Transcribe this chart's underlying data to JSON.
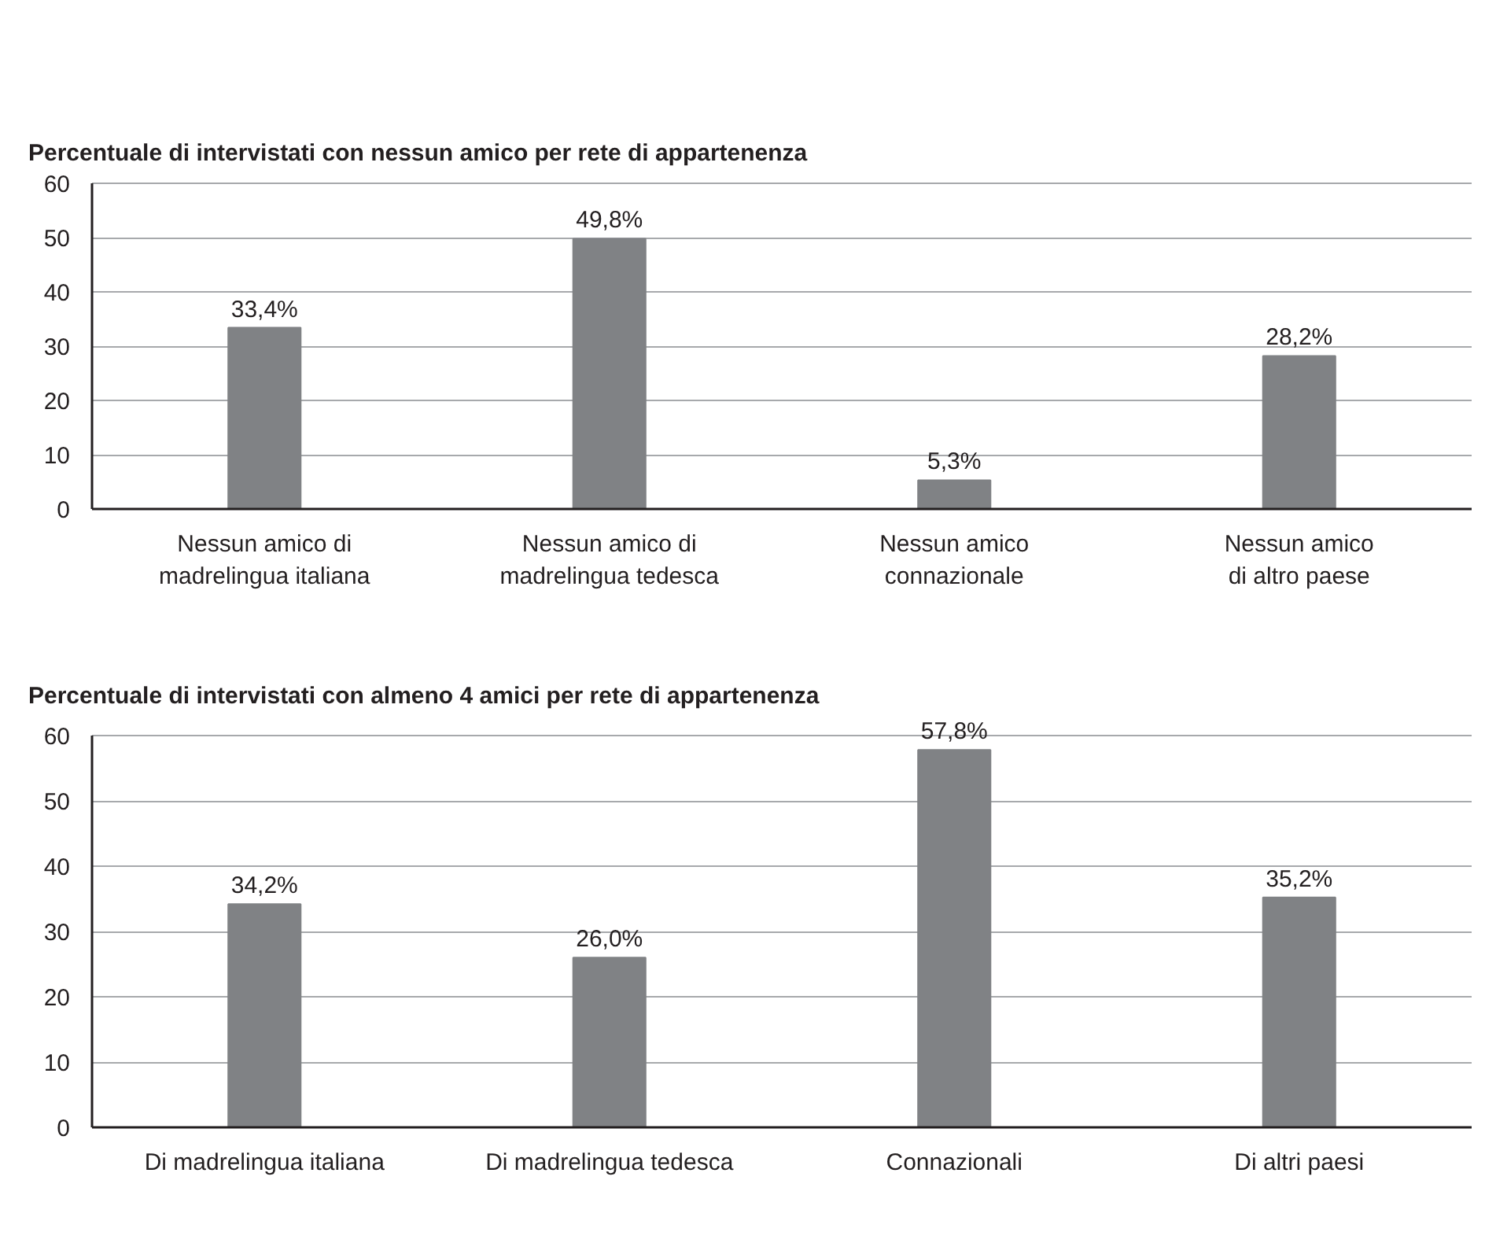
{
  "chart_data": [
    {
      "type": "bar",
      "title": "Percentuale di intervistati con nessun amico per rete di appartenenza",
      "categories": [
        "Nessun amico di\nmadrelingua italiana",
        "Nessun amico di\nmadrelingua tedesca",
        "Nessun amico\nconnazionale",
        "Nessun amico\ndi altro paese"
      ],
      "values": [
        33.4,
        49.8,
        5.3,
        28.2
      ],
      "value_labels": [
        "33,4%",
        "49,8%",
        "5,3%",
        "28,2%"
      ],
      "color": "#808285",
      "ylim": [
        0,
        60
      ],
      "yticks": [
        0,
        10,
        20,
        30,
        40,
        50,
        60
      ],
      "grid": "y"
    },
    {
      "type": "bar",
      "title": "Percentuale di intervistati con almeno 4 amici per rete di appartenenza",
      "categories": [
        "Di madrelingua italiana",
        "Di madrelingua tedesca",
        "Connazionali",
        "Di altri paesi"
      ],
      "values": [
        34.2,
        26.0,
        57.8,
        35.2
      ],
      "value_labels": [
        "34,2%",
        "26,0%",
        "57,8%",
        "35,2%"
      ],
      "color": "#808285",
      "ylim": [
        0,
        60
      ],
      "yticks": [
        0,
        10,
        20,
        30,
        40,
        50,
        60
      ],
      "grid": "y"
    }
  ]
}
